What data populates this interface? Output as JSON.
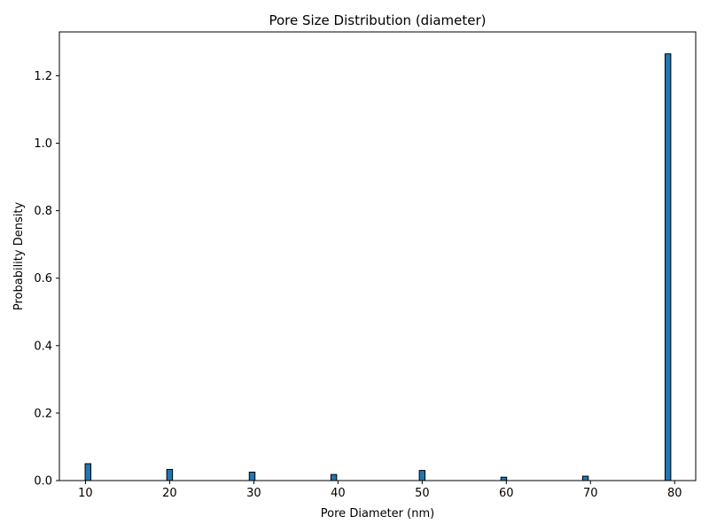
{
  "chart_data": {
    "type": "bar",
    "title": "Pore Size Distribution (diameter)",
    "xlabel": "Pore Diameter (nm)",
    "ylabel": "Probability Density",
    "x": [
      10.3,
      20.0,
      29.8,
      39.5,
      50.0,
      59.7,
      69.4,
      79.2
    ],
    "values": [
      0.05,
      0.033,
      0.025,
      0.018,
      0.03,
      0.01,
      0.013,
      1.265
    ],
    "bin_width": 0.68,
    "xlim": [
      6.9,
      82.5
    ],
    "ylim": [
      0,
      1.33
    ],
    "xticks": [
      10,
      20,
      30,
      40,
      50,
      60,
      70,
      80
    ],
    "yticks": [
      0.0,
      0.2,
      0.4,
      0.6,
      0.8,
      1.0,
      1.2
    ],
    "bar_color": "#1f77b4",
    "edge_color": "#000000",
    "grid": false
  }
}
